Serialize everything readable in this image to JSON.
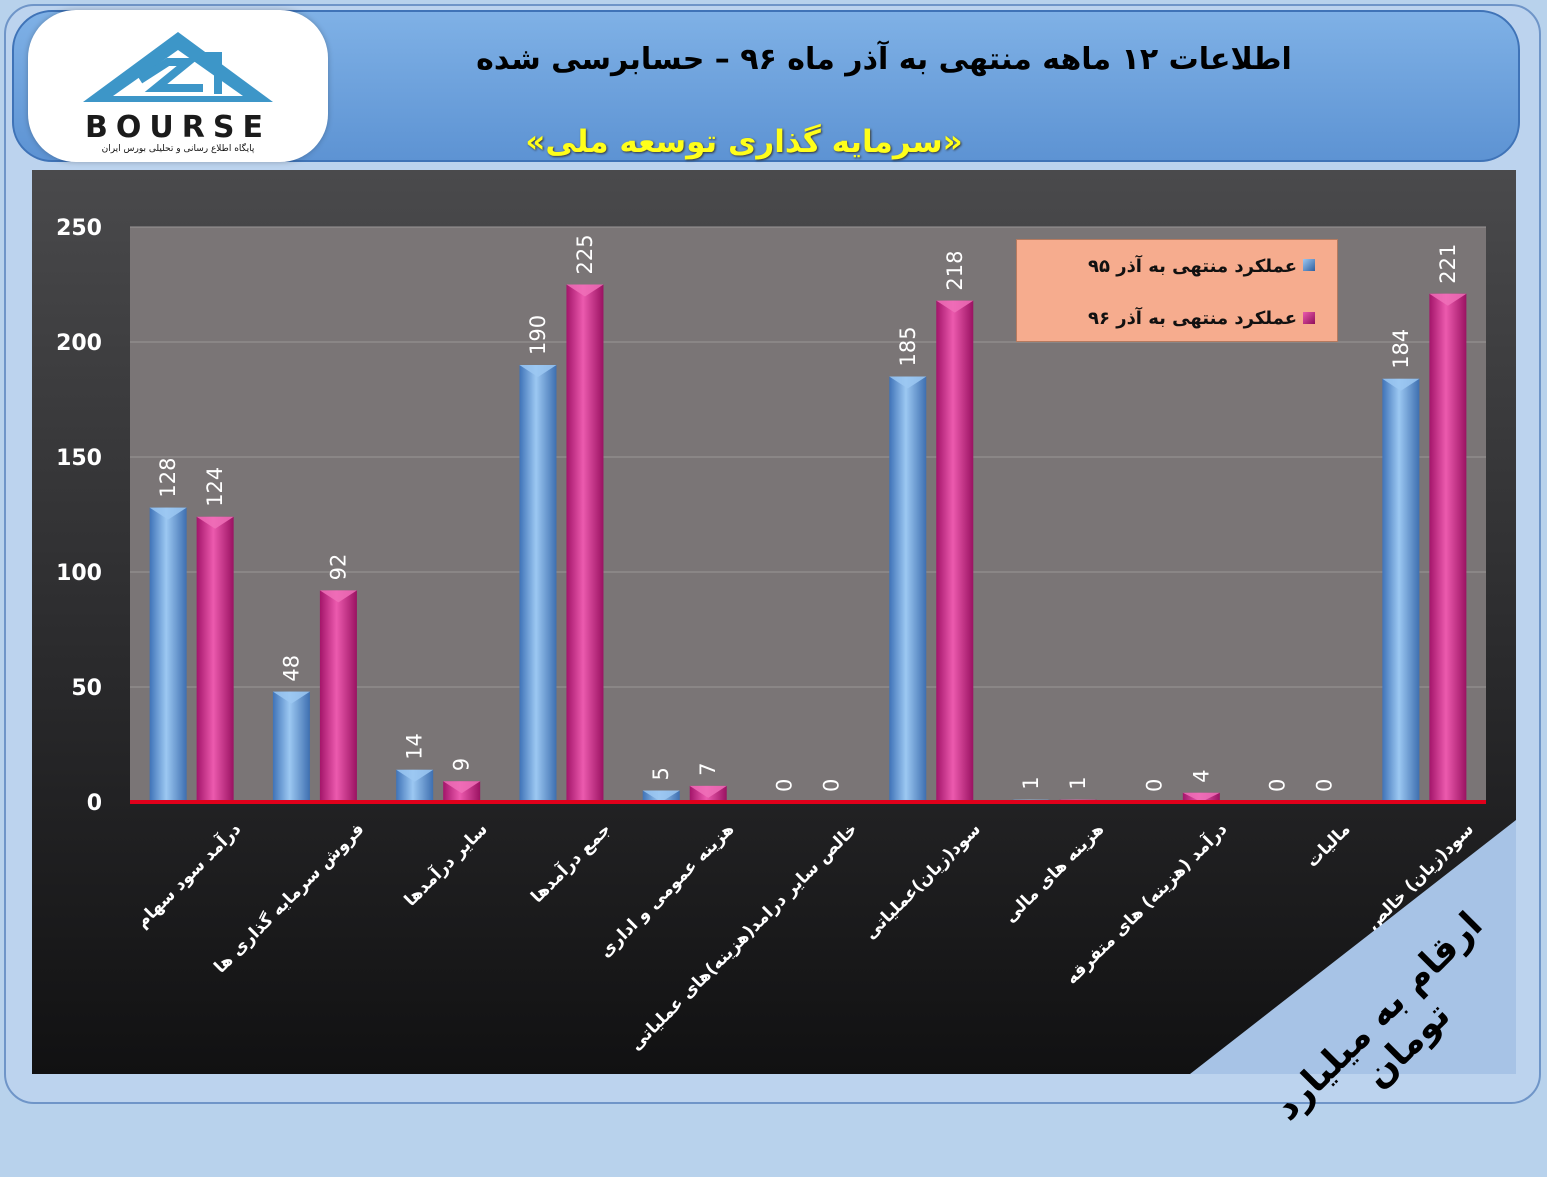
{
  "header": {
    "title": "اطلاعات ۱۲ ماهه منتهی به آذر ماه ۹۶ – حسابرسی شده",
    "subtitle": "«سرمایه گذاری توسعه ملی»"
  },
  "logo": {
    "text": "BOURSE",
    "tagline": "پایگاه اطلاع رسانی و تحلیلی بورس ایران"
  },
  "units_note": "ارقام به میلیارد تومان",
  "colors": {
    "series1": "#5b9be0",
    "series2": "#d52e8c",
    "baseline": "#e0001b",
    "plot_bg": "#7a7576"
  },
  "chart_data": {
    "type": "bar",
    "ylim": [
      0,
      250
    ],
    "yticks": [
      0,
      50,
      100,
      150,
      200,
      250
    ],
    "grid": true,
    "legend_position": "top-right",
    "categories": [
      "درآمد سود سهام",
      "فروش سرمایه گذاری ها",
      "سایر درآمدها",
      "جمع درآمدها",
      "هزینه عمومی و اداری",
      "خالص سایر درامد(هزینه)های عملیاتی",
      "سود(زیان)عملیاتی",
      "هزینه های مالی",
      "درآمد (هزینه) های متفرقه",
      "مالیات",
      "سود(زیان) خالص"
    ],
    "series": [
      {
        "name": "عملکرد منتهی به آذر ۹۵",
        "values": [
          128,
          48,
          14,
          190,
          5,
          0,
          185,
          1,
          0,
          0,
          184
        ]
      },
      {
        "name": "عملکرد منتهی به آذر ۹۶",
        "values": [
          124,
          92,
          9,
          225,
          7,
          0,
          218,
          1,
          4,
          0,
          221
        ]
      }
    ]
  }
}
